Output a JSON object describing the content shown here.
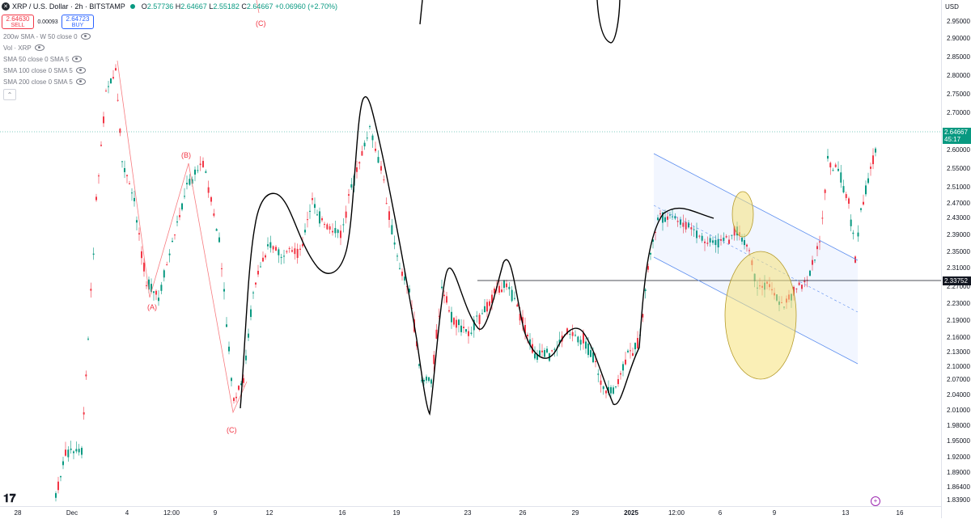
{
  "header": {
    "symbol": "XRP / U.S. Dollar · 2h · BITSTAMP",
    "symbol_icon": "xrp-logo-icon",
    "open_label": "O",
    "open": "2.57736",
    "high_label": "H",
    "high": "2.64667",
    "low_label": "L",
    "low": "2.55182",
    "close_label": "C",
    "close": "2.64667",
    "change": "+0.06960 (+2.70%)"
  },
  "trade": {
    "sell_price": "2.64630",
    "sell_label": "SELL",
    "spread": "0.00093",
    "buy_price": "2.64723",
    "buy_label": "BUY"
  },
  "indicators": [
    {
      "label": "200w SMA - W 50 close 0"
    },
    {
      "label": "Vol · XRP"
    },
    {
      "label": "SMA 50 close 0 SMA 5"
    },
    {
      "label": "SMA 100 close 0 SMA 5"
    },
    {
      "label": "SMA 200 close 0 SMA 5"
    }
  ],
  "currency": "USD",
  "price_axis": {
    "ticks": [
      "2.95000",
      "2.90000",
      "2.85000",
      "2.80000",
      "2.75000",
      "2.70000",
      "2.60000",
      "2.55000",
      "2.51000",
      "2.47000",
      "2.43000",
      "2.39000",
      "2.35000",
      "2.31000",
      "2.27000",
      "2.23000",
      "2.19000",
      "2.16000",
      "2.13000",
      "2.10000",
      "2.07000",
      "2.04000",
      "2.01000",
      "1.98000",
      "1.95000",
      "1.92000",
      "1.89000",
      "1.86400",
      "1.83900"
    ],
    "current_price": "2.64667",
    "countdown": "45:17",
    "line_price": "2.33752",
    "current_color": "#089981",
    "line_color": "#131722"
  },
  "time_axis": {
    "labels": [
      "28",
      "Dec",
      "4",
      "12:00",
      "9",
      "12",
      "16",
      "19",
      "23",
      "26",
      "29",
      "2025",
      "12:00",
      "6",
      "9",
      "13",
      "16"
    ]
  },
  "annotations": {
    "wave_a": "(A)",
    "wave_b": "(B)",
    "wave_c_low": "(C)",
    "wave_c_top": "(C)"
  },
  "colors": {
    "up": "#089981",
    "down": "#f23645",
    "wave": "#f77c80",
    "channel": "#2962ff",
    "highlight": "#f5e17a"
  }
}
